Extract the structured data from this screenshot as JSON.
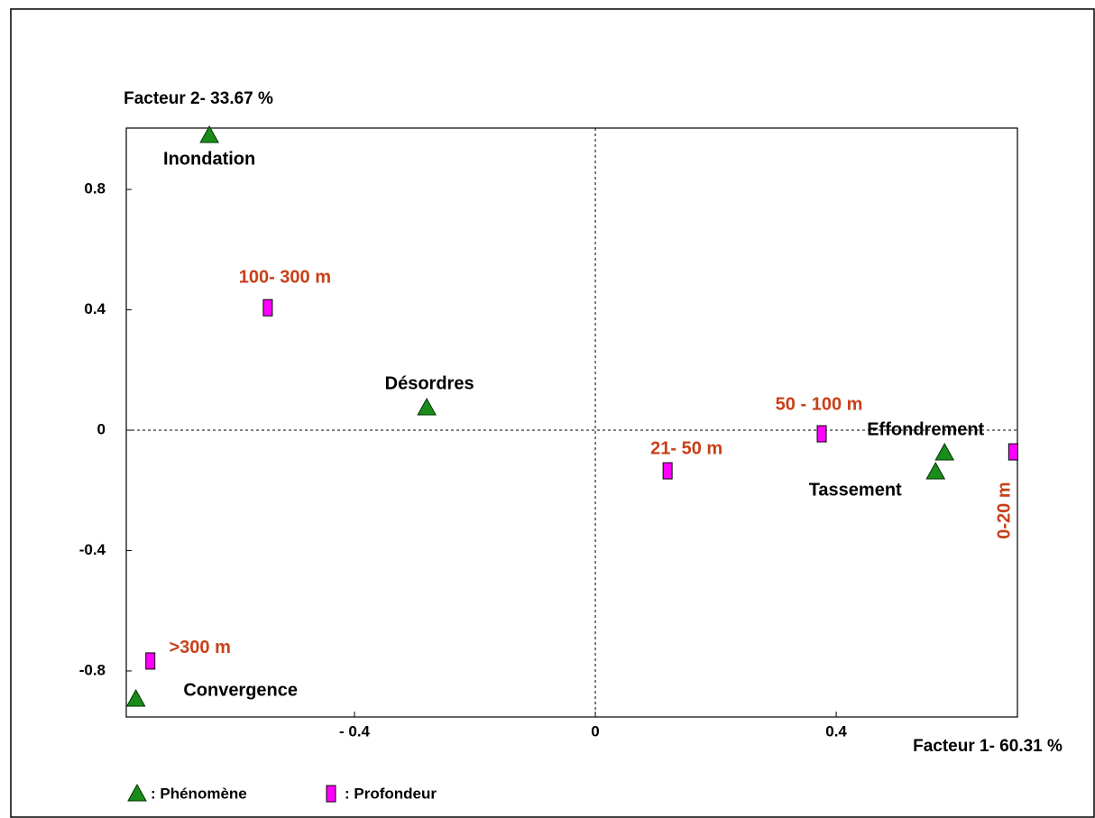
{
  "chart_data": {
    "type": "scatter",
    "y_label": "Facteur 2- 33.67 %",
    "x_label": "Facteur 1- 60.31 %",
    "xlim": [
      -0.779,
      0.701
    ],
    "ylim": [
      -0.953,
      1.004
    ],
    "xticks": [
      {
        "value": -0.4,
        "label": "- 0.4"
      },
      0,
      0.4
    ],
    "yticks": [
      0.8,
      0.4,
      0,
      -0.4,
      -0.8
    ],
    "series": [
      {
        "name": ": Phénomène",
        "color": "#1a8c1a",
        "marker": "triangle",
        "label_color": "#000000",
        "labels": [
          "Inondation",
          "Désordres",
          "Effondrement",
          "Tassement",
          "Convergence"
        ],
        "x": [
          -0.641,
          -0.28,
          0.58,
          0.565,
          -0.763
        ],
        "values": [
          0.98,
          0.075,
          -0.075,
          -0.138,
          -0.893
        ]
      },
      {
        "name": ": Profondeur",
        "color": "#ff00ff",
        "marker": "rect",
        "label_color": "#c8401a",
        "labels": [
          "100- 300 m",
          "50 - 100 m",
          "21- 50 m",
          "0-20 m",
          ">300 m"
        ],
        "x": [
          -0.544,
          0.376,
          0.12,
          0.694,
          -0.739
        ],
        "values": [
          0.407,
          -0.012,
          -0.135,
          -0.072,
          -0.767
        ]
      }
    ]
  }
}
